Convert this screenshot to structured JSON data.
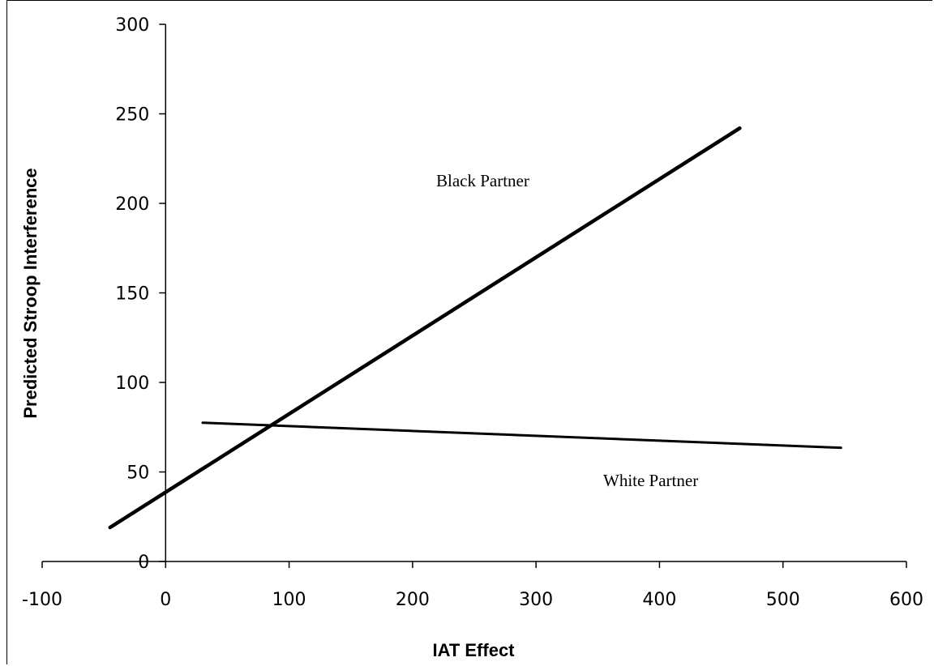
{
  "chart_data": {
    "type": "line",
    "title": "",
    "xlabel": "IAT Effect",
    "ylabel": "Predicted Stroop Interference",
    "xlim": [
      -100,
      600
    ],
    "ylim": [
      0,
      300
    ],
    "x_ticks": [
      "-100",
      "0",
      "100",
      "200",
      "300",
      "400",
      "500",
      "600"
    ],
    "y_ticks": [
      "0",
      "50",
      "100",
      "150",
      "200",
      "250",
      "300"
    ],
    "grid": false,
    "series": [
      {
        "name": "Black Partner",
        "x": [
          -45,
          465
        ],
        "y": [
          19,
          242
        ],
        "stroke_width": 4.5
      },
      {
        "name": "White Partner",
        "x": [
          30,
          547
        ],
        "y": [
          77.5,
          63.5
        ],
        "stroke_width": 3
      }
    ]
  }
}
